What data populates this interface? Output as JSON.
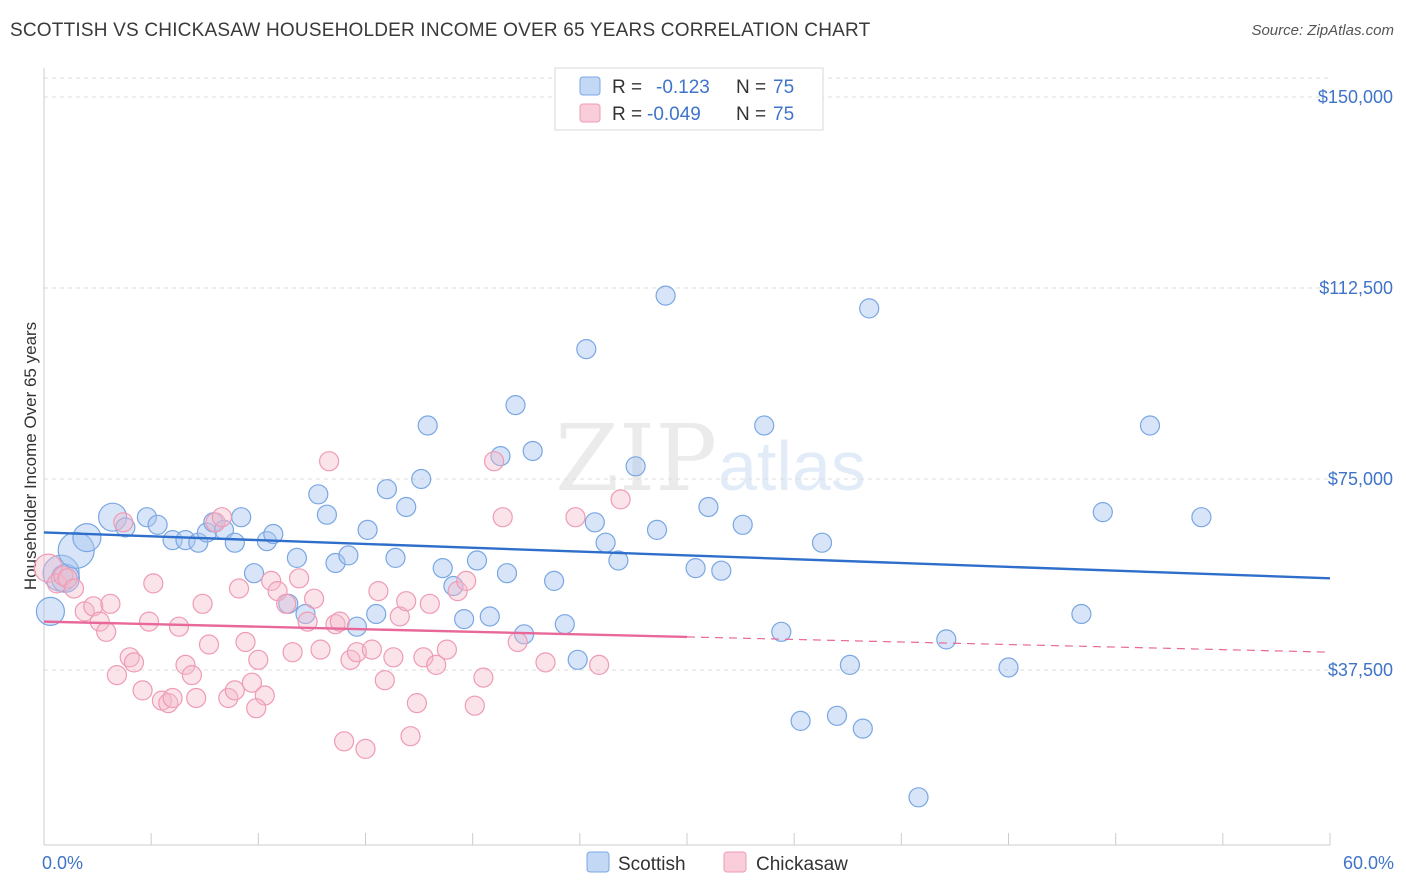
{
  "header": {
    "title": "SCOTTISH VS CHICKASAW HOUSEHOLDER INCOME OVER 65 YEARS CORRELATION CHART",
    "source": "Source: ZipAtlas.com"
  },
  "watermark": {
    "zip": "ZIP",
    "atlas": "atlas"
  },
  "legend_top": {
    "rows": [
      {
        "r_label": "R =",
        "r_value": "-0.123",
        "n_label": "N =",
        "n_value": "75",
        "color": "#a9c6ef"
      },
      {
        "r_label": "R =",
        "r_value": "-0.049",
        "n_label": "N =",
        "n_value": "75",
        "color": "#f4b8cb"
      }
    ]
  },
  "legend_bottom": {
    "items": [
      {
        "label": "Scottish",
        "color": "#a9c6ef"
      },
      {
        "label": "Chickasaw",
        "color": "#f4b8cb"
      }
    ]
  },
  "chart_data": {
    "type": "scatter",
    "ylabel": "Householder Income Over 65 years",
    "x_tick_labels": [
      "0.0%",
      "60.0%"
    ],
    "y_tick_labels": [
      "$150,000",
      "$112,500",
      "$75,000",
      "$37,500"
    ],
    "y_ticks": [
      150000,
      112500,
      75000,
      37500
    ],
    "xlim": [
      0,
      60
    ],
    "ylim": [
      0,
      155000
    ],
    "grid": true,
    "series": [
      {
        "name": "Scottish",
        "color": "#7aa7e3",
        "line_color": "#2f6fcb",
        "trend": {
          "x0": 0,
          "y0": 64500,
          "x1": 60,
          "y1": 55500
        },
        "points": [
          [
            0.3,
            49000,
            2
          ],
          [
            0.8,
            56500,
            3
          ],
          [
            1.0,
            55500,
            2
          ],
          [
            1.5,
            61000,
            3
          ],
          [
            2.0,
            63500,
            2
          ],
          [
            3.2,
            67500,
            2
          ],
          [
            3.8,
            65500,
            1
          ],
          [
            4.8,
            67500,
            1
          ],
          [
            5.3,
            66000,
            1
          ],
          [
            6.0,
            63000,
            1
          ],
          [
            6.6,
            63000,
            1
          ],
          [
            7.2,
            62500,
            1
          ],
          [
            7.6,
            64500,
            1
          ],
          [
            7.9,
            66500,
            1
          ],
          [
            8.4,
            65000,
            1
          ],
          [
            8.9,
            62500,
            1
          ],
          [
            9.2,
            67500,
            1
          ],
          [
            9.8,
            56500,
            1
          ],
          [
            10.4,
            62800,
            1
          ],
          [
            10.7,
            64200,
            1
          ],
          [
            11.4,
            50500,
            1
          ],
          [
            11.8,
            59500,
            1
          ],
          [
            12.2,
            48500,
            1
          ],
          [
            12.8,
            72000,
            1
          ],
          [
            13.2,
            68000,
            1
          ],
          [
            13.6,
            58500,
            1
          ],
          [
            14.2,
            60000,
            1
          ],
          [
            14.6,
            46000,
            1
          ],
          [
            15.1,
            65000,
            1
          ],
          [
            15.5,
            48500,
            1
          ],
          [
            16.0,
            73000,
            1
          ],
          [
            16.4,
            59500,
            1
          ],
          [
            16.9,
            69500,
            1
          ],
          [
            17.6,
            75000,
            1
          ],
          [
            17.9,
            85500,
            1
          ],
          [
            18.6,
            57500,
            1
          ],
          [
            19.1,
            54000,
            1
          ],
          [
            19.6,
            47500,
            1
          ],
          [
            20.2,
            59000,
            1
          ],
          [
            20.8,
            48000,
            1
          ],
          [
            21.3,
            79500,
            1
          ],
          [
            21.6,
            56500,
            1
          ],
          [
            22.0,
            89500,
            1
          ],
          [
            22.4,
            44500,
            1
          ],
          [
            22.8,
            80500,
            1
          ],
          [
            23.8,
            55000,
            1
          ],
          [
            24.3,
            46500,
            1
          ],
          [
            24.9,
            39500,
            1
          ],
          [
            25.3,
            100500,
            1
          ],
          [
            25.7,
            66500,
            1
          ],
          [
            26.2,
            62500,
            1
          ],
          [
            26.8,
            59000,
            1
          ],
          [
            27.6,
            77500,
            1
          ],
          [
            28.6,
            65000,
            1
          ],
          [
            29.0,
            111000,
            1
          ],
          [
            30.4,
            57500,
            1
          ],
          [
            31.0,
            69500,
            1
          ],
          [
            31.6,
            57000,
            1
          ],
          [
            32.6,
            66000,
            1
          ],
          [
            33.6,
            85500,
            1
          ],
          [
            34.4,
            45000,
            1
          ],
          [
            35.3,
            27500,
            1
          ],
          [
            36.3,
            62500,
            1
          ],
          [
            37.0,
            28500,
            1
          ],
          [
            37.6,
            38500,
            1
          ],
          [
            38.2,
            26000,
            1
          ],
          [
            38.5,
            108500,
            1
          ],
          [
            40.8,
            12500,
            1
          ],
          [
            42.1,
            43500,
            1
          ],
          [
            45.0,
            38000,
            1
          ],
          [
            48.4,
            48500,
            1
          ],
          [
            49.4,
            68500,
            1
          ],
          [
            51.6,
            85500,
            1
          ],
          [
            54.0,
            67500,
            1
          ]
        ]
      },
      {
        "name": "Chickasaw",
        "color": "#ef9bb5",
        "line_color": "#e8689a",
        "trend": {
          "x0": 0,
          "y0": 47000,
          "x1": 30,
          "y1": 44000
        },
        "trend_dashed": {
          "x0": 30,
          "y0": 44000,
          "x1": 60,
          "y1": 41000
        },
        "points": [
          [
            0.2,
            57500,
            2
          ],
          [
            0.6,
            54500,
            1
          ],
          [
            0.9,
            56000,
            1
          ],
          [
            1.1,
            55500,
            1
          ],
          [
            1.4,
            53500,
            1
          ],
          [
            1.9,
            49000,
            1
          ],
          [
            2.3,
            50000,
            1
          ],
          [
            2.6,
            47000,
            1
          ],
          [
            2.9,
            45000,
            1
          ],
          [
            3.1,
            50500,
            1
          ],
          [
            3.4,
            36500,
            1
          ],
          [
            3.7,
            66500,
            1
          ],
          [
            4.0,
            40000,
            1
          ],
          [
            4.2,
            39000,
            1
          ],
          [
            4.6,
            33500,
            1
          ],
          [
            4.9,
            47000,
            1
          ],
          [
            5.1,
            54500,
            1
          ],
          [
            5.5,
            31500,
            1
          ],
          [
            5.8,
            31000,
            1
          ],
          [
            6.0,
            32000,
            1
          ],
          [
            6.3,
            46000,
            1
          ],
          [
            6.6,
            38500,
            1
          ],
          [
            6.9,
            36500,
            1
          ],
          [
            7.1,
            32000,
            1
          ],
          [
            7.4,
            50500,
            1
          ],
          [
            7.7,
            42500,
            1
          ],
          [
            8.0,
            66500,
            1
          ],
          [
            8.3,
            67500,
            1
          ],
          [
            8.6,
            32000,
            1
          ],
          [
            8.9,
            33500,
            1
          ],
          [
            9.1,
            53500,
            1
          ],
          [
            9.4,
            43000,
            1
          ],
          [
            9.7,
            35000,
            1
          ],
          [
            10.0,
            39500,
            1
          ],
          [
            10.3,
            32500,
            1
          ],
          [
            10.6,
            55000,
            1
          ],
          [
            10.9,
            53000,
            1
          ],
          [
            11.3,
            50500,
            1
          ],
          [
            11.6,
            41000,
            1
          ],
          [
            11.9,
            55500,
            1
          ],
          [
            12.3,
            47000,
            1
          ],
          [
            12.6,
            51500,
            1
          ],
          [
            12.9,
            41500,
            1
          ],
          [
            13.3,
            78500,
            1
          ],
          [
            13.6,
            46500,
            1
          ],
          [
            14.0,
            23500,
            1
          ],
          [
            14.3,
            39500,
            1
          ],
          [
            14.6,
            41000,
            1
          ],
          [
            15.0,
            22000,
            1
          ],
          [
            15.3,
            41500,
            1
          ],
          [
            15.6,
            53000,
            1
          ],
          [
            15.9,
            35500,
            1
          ],
          [
            16.3,
            40000,
            1
          ],
          [
            16.6,
            48000,
            1
          ],
          [
            16.9,
            51000,
            1
          ],
          [
            17.1,
            24500,
            1
          ],
          [
            17.4,
            31000,
            1
          ],
          [
            17.7,
            40000,
            1
          ],
          [
            18.0,
            50500,
            1
          ],
          [
            18.3,
            38500,
            1
          ],
          [
            18.8,
            41500,
            1
          ],
          [
            19.3,
            53000,
            1
          ],
          [
            19.7,
            55000,
            1
          ],
          [
            20.1,
            30500,
            1
          ],
          [
            20.5,
            36000,
            1
          ],
          [
            21.4,
            67500,
            1
          ],
          [
            22.1,
            43000,
            1
          ],
          [
            23.4,
            39000,
            1
          ],
          [
            24.8,
            67500,
            1
          ],
          [
            25.9,
            38500,
            1
          ],
          [
            26.9,
            71000,
            1
          ],
          [
            21.0,
            78500,
            1
          ],
          [
            13.8,
            47000,
            1
          ],
          [
            9.9,
            30000,
            1
          ]
        ]
      }
    ]
  }
}
